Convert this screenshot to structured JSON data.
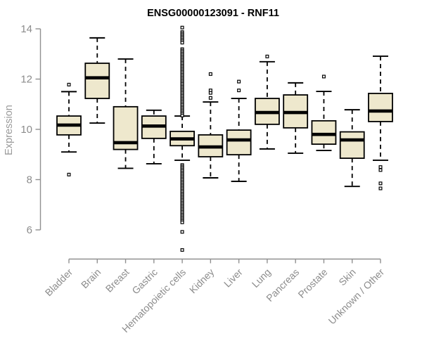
{
  "chart_data": {
    "type": "boxplot",
    "title": "ENSG00000123091 - RNF11",
    "xlabel": "",
    "ylabel": "Expression",
    "ylim": [
      6,
      14
    ],
    "yticks": [
      6,
      8,
      10,
      12,
      14
    ],
    "grid": false,
    "legend": "none",
    "colors": {
      "box_fill": "#EEE8CD",
      "box_stroke": "#000000",
      "axis": "#909090",
      "tick_text": "#8c8c8c",
      "title_text": "#000000"
    },
    "categories": [
      "Bladder",
      "Brain",
      "Breast",
      "Gastric",
      "Hematopoietic cells",
      "Kidney",
      "Liver",
      "Lung",
      "Pancreas",
      "Prostate",
      "Skin",
      "Unknown / Other"
    ],
    "series": [
      {
        "label": "Bladder",
        "whisker_low": 9.1,
        "q1": 9.78,
        "median": 10.17,
        "q3": 10.53,
        "whisker_high": 11.5,
        "outliers": [
          11.78,
          8.2
        ]
      },
      {
        "label": "Brain",
        "whisker_low": 10.25,
        "q1": 11.23,
        "median": 12.05,
        "q3": 12.63,
        "whisker_high": 13.64,
        "outliers": []
      },
      {
        "label": "Breast",
        "whisker_low": 8.45,
        "q1": 9.2,
        "median": 9.47,
        "q3": 10.9,
        "whisker_high": 12.8,
        "outliers": []
      },
      {
        "label": "Gastric",
        "whisker_low": 8.63,
        "q1": 9.64,
        "median": 10.13,
        "q3": 10.53,
        "whisker_high": 10.76,
        "outliers": []
      },
      {
        "label": "Hematopoietic cells",
        "whisker_low": 8.77,
        "q1": 9.35,
        "median": 9.62,
        "q3": 9.92,
        "whisker_high": 10.53,
        "outliers": [
          14.05,
          13.87,
          13.81,
          13.75,
          13.69,
          13.63,
          13.57,
          13.51,
          13.45,
          13.19,
          13.13,
          13.07,
          13.01,
          12.95,
          12.89,
          12.83,
          12.77,
          12.71,
          12.65,
          12.59,
          12.53,
          12.47,
          12.41,
          12.35,
          12.29,
          12.23,
          12.17,
          12.11,
          12.05,
          11.99,
          11.93,
          11.87,
          11.81,
          11.75,
          11.69,
          11.63,
          11.57,
          11.51,
          11.45,
          11.39,
          11.33,
          11.27,
          11.21,
          11.15,
          11.09,
          11.03,
          10.97,
          10.91,
          10.85,
          10.79,
          10.73,
          10.67,
          10.61,
          10.55,
          8.58,
          8.52,
          8.46,
          8.4,
          8.34,
          8.28,
          8.22,
          8.16,
          8.1,
          8.04,
          7.98,
          7.92,
          7.86,
          7.8,
          7.74,
          7.68,
          7.62,
          7.56,
          7.5,
          7.44,
          7.38,
          7.32,
          7.26,
          7.2,
          7.14,
          7.08,
          7.02,
          6.96,
          6.9,
          6.84,
          6.78,
          6.72,
          6.66,
          6.6,
          6.54,
          6.48,
          6.42,
          6.36,
          6.3,
          5.92,
          5.2
        ]
      },
      {
        "label": "Kidney",
        "whisker_low": 8.07,
        "q1": 8.91,
        "median": 9.3,
        "q3": 9.78,
        "whisker_high": 11.09,
        "outliers": [
          12.2,
          11.55,
          11.45,
          11.25
        ]
      },
      {
        "label": "Liver",
        "whisker_low": 7.93,
        "q1": 8.99,
        "median": 9.58,
        "q3": 9.97,
        "whisker_high": 11.23,
        "outliers": [
          11.9,
          11.55
        ]
      },
      {
        "label": "Lung",
        "whisker_low": 9.22,
        "q1": 10.2,
        "median": 10.67,
        "q3": 11.23,
        "whisker_high": 12.69,
        "outliers": [
          12.9
        ]
      },
      {
        "label": "Pancreas",
        "whisker_low": 9.05,
        "q1": 10.06,
        "median": 10.67,
        "q3": 11.37,
        "whisker_high": 11.85,
        "outliers": []
      },
      {
        "label": "Prostate",
        "whisker_low": 9.16,
        "q1": 9.41,
        "median": 9.8,
        "q3": 10.34,
        "whisker_high": 11.51,
        "outliers": [
          12.1
        ]
      },
      {
        "label": "Skin",
        "whisker_low": 7.73,
        "q1": 8.85,
        "median": 9.58,
        "q3": 9.9,
        "whisker_high": 10.78,
        "outliers": []
      },
      {
        "label": "Unknown / Other",
        "whisker_low": 8.77,
        "q1": 10.31,
        "median": 10.73,
        "q3": 11.43,
        "whisker_high": 12.91,
        "outliers": [
          8.5,
          8.38,
          7.85,
          7.65
        ]
      }
    ]
  }
}
